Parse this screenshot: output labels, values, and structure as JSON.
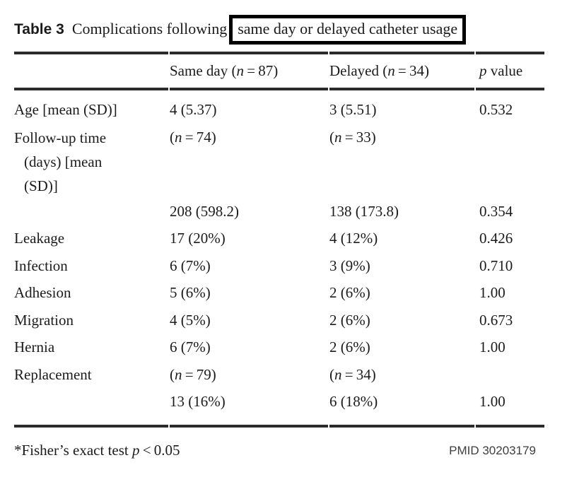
{
  "colors": {
    "background": "#ffffff",
    "text": "#1b1b1b",
    "rule": "#2b2b2b",
    "box_border": "#000000",
    "pmid": "#3d3d3d"
  },
  "caption": {
    "label": "Table 3",
    "text": "Complications following",
    "boxed_text": "same day or delayed catheter usage"
  },
  "table": {
    "header": [
      "",
      "Same day (<i>n</i>&thinsp;=&thinsp;87)",
      "Delayed (<i>n</i>&thinsp;=&thinsp;34)",
      "<i>p</i> value"
    ],
    "rows": [
      {
        "cells": [
          "Age [mean (SD)]",
          "4 (5.37)",
          "3 (5.51)",
          "0.532"
        ]
      },
      {
        "cells": [
          "Follow-up time<br>(days) [mean<br>(SD)]",
          "(<i>n</i>&thinsp;=&thinsp;74)",
          "(<i>n</i>&thinsp;=&thinsp;33)",
          ""
        ]
      },
      {
        "cells": [
          "",
          "208 (598.2)",
          "138 (173.8)",
          "0.354"
        ]
      },
      {
        "cells": [
          "Leakage",
          "17 (20%)",
          "4 (12%)",
          "0.426"
        ]
      },
      {
        "cells": [
          "Infection",
          "6 (7%)",
          "3 (9%)",
          "0.710"
        ]
      },
      {
        "cells": [
          "Adhesion",
          "5 (6%)",
          "2 (6%)",
          "1.00"
        ]
      },
      {
        "cells": [
          "Migration",
          "4 (5%)",
          "2 (6%)",
          "0.673"
        ]
      },
      {
        "cells": [
          "Hernia",
          "6 (7%)",
          "2 (6%)",
          "1.00"
        ]
      },
      {
        "cells": [
          "Replacement",
          "(<i>n</i>&thinsp;=&thinsp;79)",
          "(<i>n</i>&thinsp;=&thinsp;34)",
          ""
        ]
      },
      {
        "cells": [
          "",
          "13 (16%)",
          "6 (18%)",
          "1.00"
        ]
      }
    ]
  },
  "footnote": "*Fisher’s exact test <i>p</i>&thinsp;&lt;&thinsp;0.05",
  "pmid": "PMID 30203179"
}
